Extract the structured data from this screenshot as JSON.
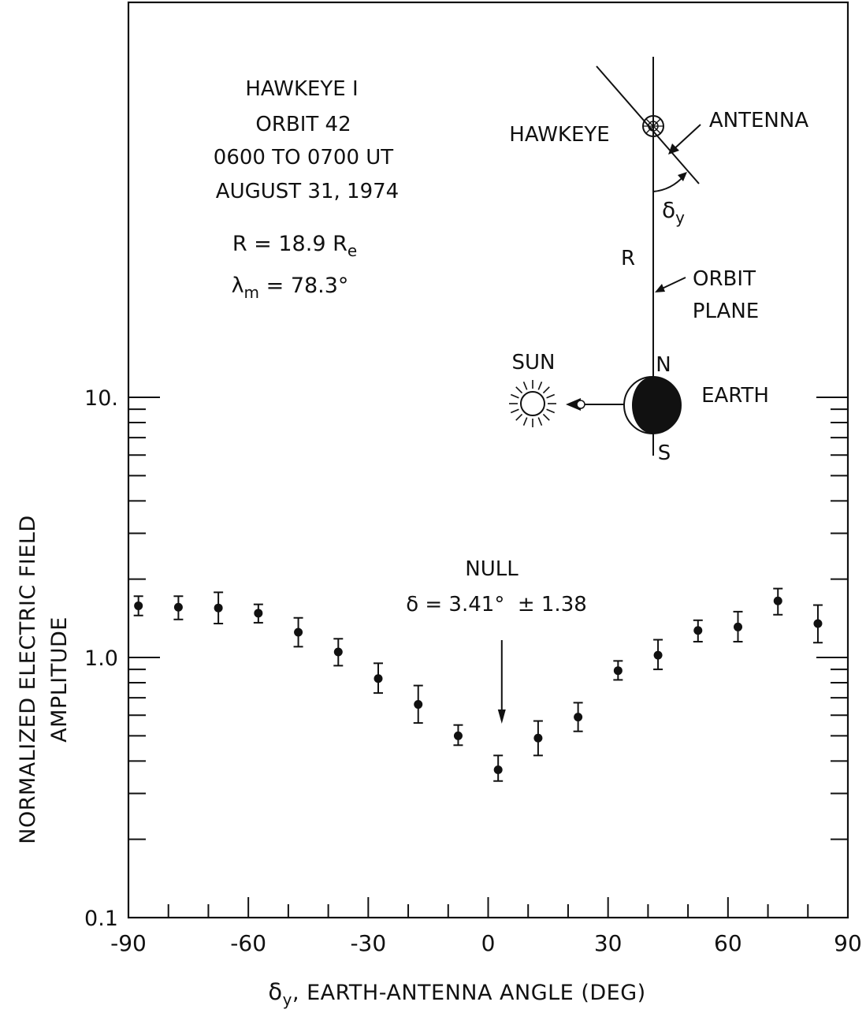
{
  "chart_data": {
    "type": "scatter",
    "y_scale": "log",
    "xlim": [
      -90,
      90
    ],
    "ylim": [
      0.1,
      100
    ],
    "grid": false,
    "xlabel_prefix": "δ",
    "xlabel_sub": "y",
    "xlabel_rest": ", EARTH-ANTENNA ANGLE (DEG)",
    "ylabel_line1": "NORMALIZED ELECTRIC FIELD",
    "ylabel_line2": "AMPLITUDE",
    "x_tick_labels": [
      "-90",
      "-60",
      "-30",
      "0",
      "30",
      "60",
      "90"
    ],
    "y_tick_labels": [
      "0.1",
      "1.0",
      "10."
    ],
    "info_lines": [
      "HAWKEYE I",
      "ORBIT 42",
      "0600 TO 0700 UT",
      "AUGUST 31, 1974"
    ],
    "info_r_prefix": "R = 18.9 R",
    "info_r_sub": "e",
    "info_lambda_prefix": "λ",
    "info_lambda_sub": "m",
    "info_lambda_rest": " = 78.3°",
    "null_label": "NULL",
    "null_value_text": "δ = 3.41°  ± 1.38",
    "null_x": 3.41,
    "points": [
      {
        "x": -87.5,
        "y": 1.58,
        "ylow": 1.45,
        "yhigh": 1.72
      },
      {
        "x": -77.5,
        "y": 1.56,
        "ylow": 1.4,
        "yhigh": 1.72
      },
      {
        "x": -67.5,
        "y": 1.55,
        "ylow": 1.35,
        "yhigh": 1.78
      },
      {
        "x": -57.5,
        "y": 1.48,
        "ylow": 1.36,
        "yhigh": 1.6
      },
      {
        "x": -47.5,
        "y": 1.25,
        "ylow": 1.1,
        "yhigh": 1.42
      },
      {
        "x": -37.5,
        "y": 1.05,
        "ylow": 0.93,
        "yhigh": 1.18
      },
      {
        "x": -27.5,
        "y": 0.83,
        "ylow": 0.73,
        "yhigh": 0.95
      },
      {
        "x": -17.5,
        "y": 0.66,
        "ylow": 0.56,
        "yhigh": 0.78
      },
      {
        "x": -7.5,
        "y": 0.5,
        "ylow": 0.46,
        "yhigh": 0.55
      },
      {
        "x": 2.5,
        "y": 0.37,
        "ylow": 0.335,
        "yhigh": 0.42
      },
      {
        "x": 12.5,
        "y": 0.49,
        "ylow": 0.42,
        "yhigh": 0.57
      },
      {
        "x": 22.5,
        "y": 0.59,
        "ylow": 0.52,
        "yhigh": 0.67
      },
      {
        "x": 32.5,
        "y": 0.89,
        "ylow": 0.82,
        "yhigh": 0.97
      },
      {
        "x": 42.5,
        "y": 1.02,
        "ylow": 0.9,
        "yhigh": 1.17
      },
      {
        "x": 52.5,
        "y": 1.27,
        "ylow": 1.15,
        "yhigh": 1.39
      },
      {
        "x": 62.5,
        "y": 1.31,
        "ylow": 1.15,
        "yhigh": 1.5
      },
      {
        "x": 72.5,
        "y": 1.65,
        "ylow": 1.46,
        "yhigh": 1.84
      },
      {
        "x": 82.5,
        "y": 1.35,
        "ylow": 1.14,
        "yhigh": 1.59
      }
    ]
  },
  "diagram": {
    "hawkeye_label": "HAWKEYE",
    "antenna_label": "ANTENNA",
    "angle_prefix": "δ",
    "angle_sub": "y",
    "r_label": "R",
    "orbit_label_1": "ORBIT",
    "orbit_label_2": "PLANE",
    "sun_label": "SUN",
    "earth_label": "EARTH",
    "north_label": "N",
    "south_label": "S"
  }
}
